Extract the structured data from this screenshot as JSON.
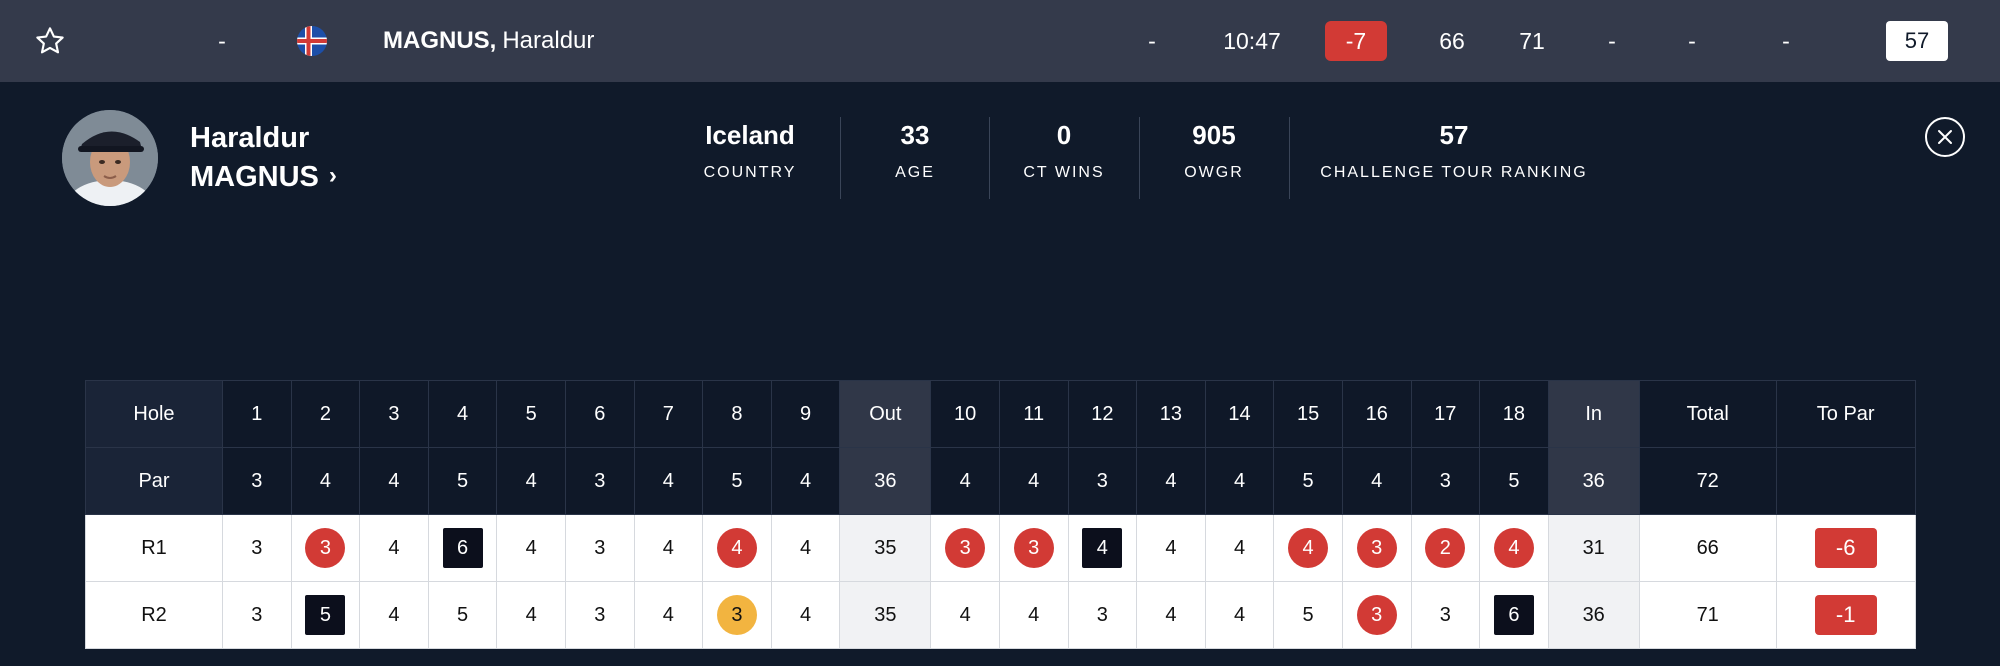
{
  "topbar": {
    "pos": "-",
    "name_last": "MAGNUS,",
    "name_first": "Haraldur",
    "thru": "-",
    "tee_time": "10:47",
    "to_par": "-7",
    "r1": "66",
    "r2": "71",
    "r3": "-",
    "r4": "-",
    "total": "-",
    "ranking": "57",
    "colors": {
      "accent_red": "#d23a35",
      "bar_bg": "#343a4b"
    }
  },
  "profile": {
    "first_name": "Haraldur",
    "last_name": "MAGNUS",
    "stats": [
      {
        "value": "Iceland",
        "label": "COUNTRY"
      },
      {
        "value": "33",
        "label": "AGE"
      },
      {
        "value": "0",
        "label": "CT WINS"
      },
      {
        "value": "905",
        "label": "OWGR"
      },
      {
        "value": "57",
        "label": "CHALLENGE TOUR RANKING"
      }
    ]
  },
  "scorecard": {
    "header": [
      "Hole",
      "1",
      "2",
      "3",
      "4",
      "5",
      "6",
      "7",
      "8",
      "9",
      "Out",
      "10",
      "11",
      "12",
      "13",
      "14",
      "15",
      "16",
      "17",
      "18",
      "In",
      "Total",
      "To Par"
    ],
    "par": [
      "Par",
      "3",
      "4",
      "4",
      "5",
      "4",
      "3",
      "4",
      "5",
      "4",
      "36",
      "4",
      "4",
      "3",
      "4",
      "4",
      "5",
      "4",
      "3",
      "5",
      "36",
      "72",
      ""
    ],
    "rounds": [
      {
        "label": "R1",
        "holes": [
          {
            "v": "3",
            "t": "par"
          },
          {
            "v": "3",
            "t": "birdie"
          },
          {
            "v": "4",
            "t": "par"
          },
          {
            "v": "6",
            "t": "bogey"
          },
          {
            "v": "4",
            "t": "par"
          },
          {
            "v": "3",
            "t": "par"
          },
          {
            "v": "4",
            "t": "par"
          },
          {
            "v": "4",
            "t": "birdie"
          },
          {
            "v": "4",
            "t": "par"
          },
          {
            "v": "3",
            "t": "birdie"
          },
          {
            "v": "3",
            "t": "birdie"
          },
          {
            "v": "4",
            "t": "bogey"
          },
          {
            "v": "4",
            "t": "par"
          },
          {
            "v": "4",
            "t": "par"
          },
          {
            "v": "4",
            "t": "birdie"
          },
          {
            "v": "3",
            "t": "birdie"
          },
          {
            "v": "2",
            "t": "birdie"
          },
          {
            "v": "4",
            "t": "birdie"
          }
        ],
        "out": "35",
        "in": "31",
        "total": "66",
        "to_par": "-6"
      },
      {
        "label": "R2",
        "holes": [
          {
            "v": "3",
            "t": "par"
          },
          {
            "v": "5",
            "t": "bogey"
          },
          {
            "v": "4",
            "t": "par"
          },
          {
            "v": "5",
            "t": "par"
          },
          {
            "v": "4",
            "t": "par"
          },
          {
            "v": "3",
            "t": "par"
          },
          {
            "v": "4",
            "t": "par"
          },
          {
            "v": "3",
            "t": "eagle"
          },
          {
            "v": "4",
            "t": "par"
          },
          {
            "v": "4",
            "t": "par"
          },
          {
            "v": "4",
            "t": "par"
          },
          {
            "v": "3",
            "t": "par"
          },
          {
            "v": "4",
            "t": "par"
          },
          {
            "v": "4",
            "t": "par"
          },
          {
            "v": "5",
            "t": "par"
          },
          {
            "v": "3",
            "t": "birdie"
          },
          {
            "v": "3",
            "t": "par"
          },
          {
            "v": "6",
            "t": "bogey"
          }
        ],
        "out": "35",
        "in": "36",
        "total": "71",
        "to_par": "-1"
      }
    ]
  }
}
